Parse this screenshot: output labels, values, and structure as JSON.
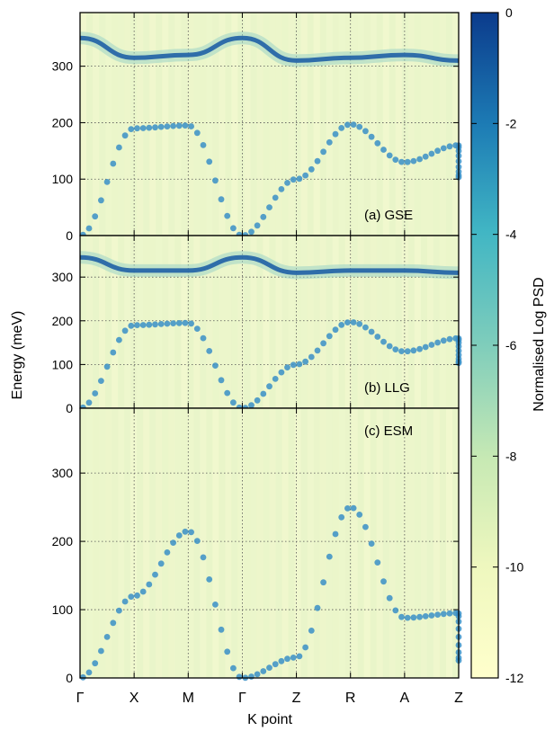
{
  "chart_data": {
    "type": "heatmap",
    "subtype": "spin-wave dispersion (power spectral density)",
    "xlabel": "K point",
    "ylabel": "Energy (meV)",
    "x_ticks": [
      "Γ",
      "X",
      "M",
      "Γ",
      "Z",
      "R",
      "A",
      "Z"
    ],
    "y_ticks": [
      0,
      100,
      200,
      300
    ],
    "ylim": [
      0,
      395
    ],
    "grid": true,
    "grid_style": "dotted",
    "colorbar": {
      "label": "Normalised Log PSD",
      "range": [
        -12,
        0
      ],
      "ticks": [
        0,
        -2,
        -4,
        -6,
        -8,
        -10,
        -12
      ],
      "colors": [
        "#ffffcc",
        "#e3f2b4",
        "#a8ddb5",
        "#5ab9c7",
        "#2c7fb8",
        "#0b3b8c"
      ]
    },
    "panels": [
      {
        "label": "(a) GSE",
        "acoustic_branch": [
          0,
          190,
          195,
          0,
          100,
          197,
          130,
          160,
          103
        ],
        "optical_branch": [
          350,
          315,
          320,
          350,
          310,
          315,
          320,
          310
        ]
      },
      {
        "label": "(b) LLG",
        "acoustic_branch": [
          0,
          190,
          195,
          0,
          100,
          197,
          130,
          160,
          103
        ],
        "optical_branch": [
          345,
          315,
          315,
          345,
          310,
          315,
          315,
          310
        ]
      },
      {
        "label": "(c) ESM",
        "acoustic_branch": [
          0,
          120,
          215,
          0,
          30,
          250,
          88,
          95,
          25
        ]
      }
    ]
  }
}
